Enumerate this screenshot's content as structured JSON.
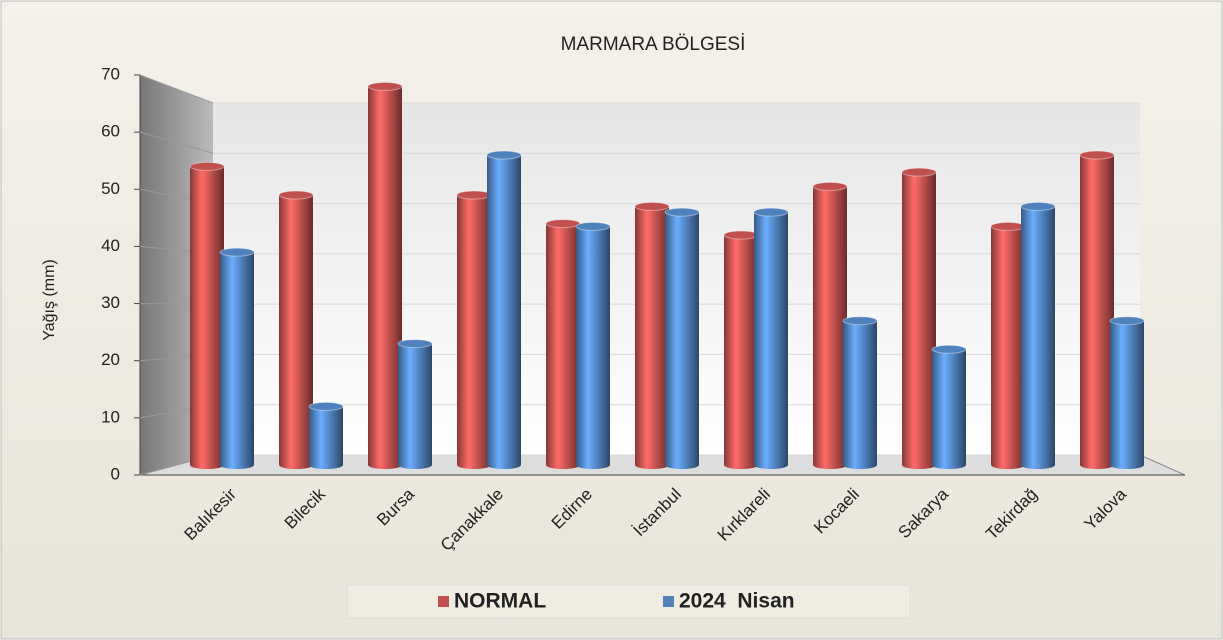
{
  "chart_data": {
    "type": "bar3d",
    "title": "MARMARA BÖLGESİ",
    "y_label": "Yağış (mm)",
    "categories": [
      "Balıkesir",
      "Bilecik",
      "Bursa",
      "Çanakkale",
      "Edirne",
      "İstanbul",
      "Kırklareli",
      "Kocaeli",
      "Sakarya",
      "Tekirdağ",
      "Yalova"
    ],
    "series": [
      {
        "name": "NORMAL",
        "color": "#c0504d",
        "values": [
          54,
          49,
          68,
          49,
          44,
          47,
          42,
          50.5,
          53,
          43.5,
          56
        ]
      },
      {
        "name": "2024  Nisan",
        "color": "#4f81bd",
        "values": [
          39,
          12,
          23,
          56,
          43.5,
          46,
          46,
          27,
          22,
          47,
          27
        ]
      }
    ],
    "ylim": [
      0,
      70
    ],
    "yticks": [
      0,
      10,
      20,
      30,
      40,
      50,
      60,
      70
    ],
    "grid": true
  }
}
